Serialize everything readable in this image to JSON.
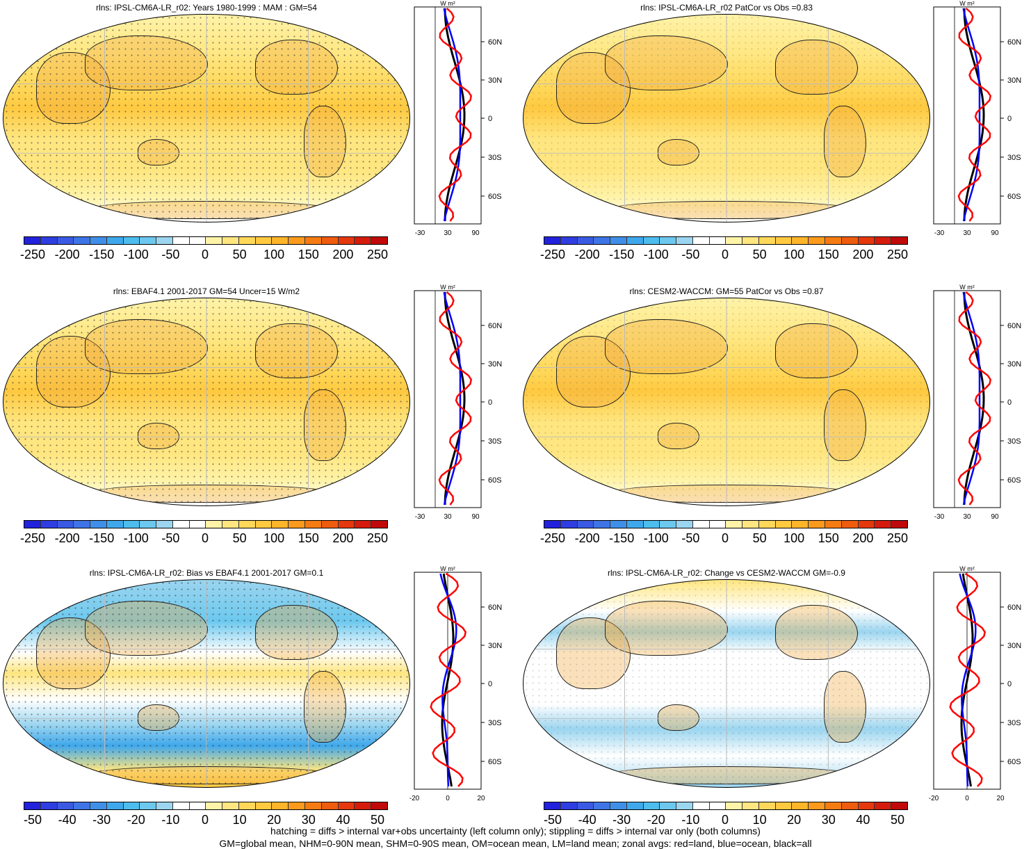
{
  "panels": [
    {
      "title": "rlns: IPSL-CM6A-LR_r02: Years 1980-1999 : MAM : GM=54",
      "palette": "abs",
      "stipple": "heavy"
    },
    {
      "title": "rlns: IPSL-CM6A-LR_r02 PatCor vs Obs =0.83",
      "palette": "abs",
      "stipple": "light"
    },
    {
      "title": "rlns: EBAF4.1 2001-2017 GM=54 Uncer=15 W/m2",
      "palette": "abs",
      "stipple": "heavy"
    },
    {
      "title": "rlns: CESM2-WACCM: GM=55 PatCor vs Obs =0.87",
      "palette": "abs",
      "stipple": "light"
    },
    {
      "title": "rlns: IPSL-CM6A-LR_r02: Bias vs EBAF4.1 2001-2017 GM=0.1",
      "palette": "diff",
      "stipple": "heavy"
    },
    {
      "title": "rlns: IPSL-CM6A-LR_r02: Change vs CESM2-WACCM GM=-0.9",
      "palette": "diff",
      "stipple": "light"
    }
  ],
  "colorbars": {
    "abs": {
      "labels": [
        "-250",
        "-200",
        "-150",
        "-100",
        "-50",
        "0",
        "50",
        "100",
        "150",
        "200",
        "250"
      ],
      "colors": [
        "#2222dd",
        "#2f3ee0",
        "#3a5ae4",
        "#3f74e6",
        "#3f8fe9",
        "#3fa8ec",
        "#4dbdee",
        "#6cc8ee",
        "#9bd5ef",
        "#ffffff",
        "#ffffff",
        "#fff3a8",
        "#ffe680",
        "#ffd85a",
        "#ffc940",
        "#ffb52a",
        "#fb9a1c",
        "#f57c12",
        "#ee5c0e",
        "#e5380c",
        "#d51b0c",
        "#c0090a"
      ]
    },
    "diff": {
      "labels": [
        "-50",
        "-40",
        "-30",
        "-20",
        "-10",
        "0",
        "10",
        "20",
        "30",
        "40",
        "50"
      ],
      "colors": [
        "#2222dd",
        "#2f3ee0",
        "#3a5ae4",
        "#3f74e6",
        "#3f8fe9",
        "#3fa8ec",
        "#4dbdee",
        "#6cc8ee",
        "#9bd5ef",
        "#ffffff",
        "#ffffff",
        "#fff3a8",
        "#ffe680",
        "#ffd85a",
        "#ffc940",
        "#ffb52a",
        "#fb9a1c",
        "#f57c12",
        "#ee5c0e",
        "#e5380c",
        "#d51b0c",
        "#c0090a"
      ]
    }
  },
  "zonal": {
    "units": "W m²",
    "lat_labels": [
      "60N",
      "30N",
      "0",
      "30S",
      "60S"
    ],
    "abs_ticks": [
      "-30",
      "30",
      "90"
    ],
    "diff_ticks": [
      "-20",
      "0",
      "20"
    ],
    "legend_colors": {
      "land": "#ff0000",
      "ocean": "#0000ff",
      "all": "#000000"
    }
  },
  "footer": {
    "line1": "hatching = diffs > internal var+obs uncertainty (left column only); stippling = diffs > internal var only (both columns)",
    "line2": "GM=global mean, NHM=0-90N mean, SHM=0-90S mean, OM=ocean mean, LM=land mean; zonal avgs: red=land, blue=ocean, black=all"
  }
}
